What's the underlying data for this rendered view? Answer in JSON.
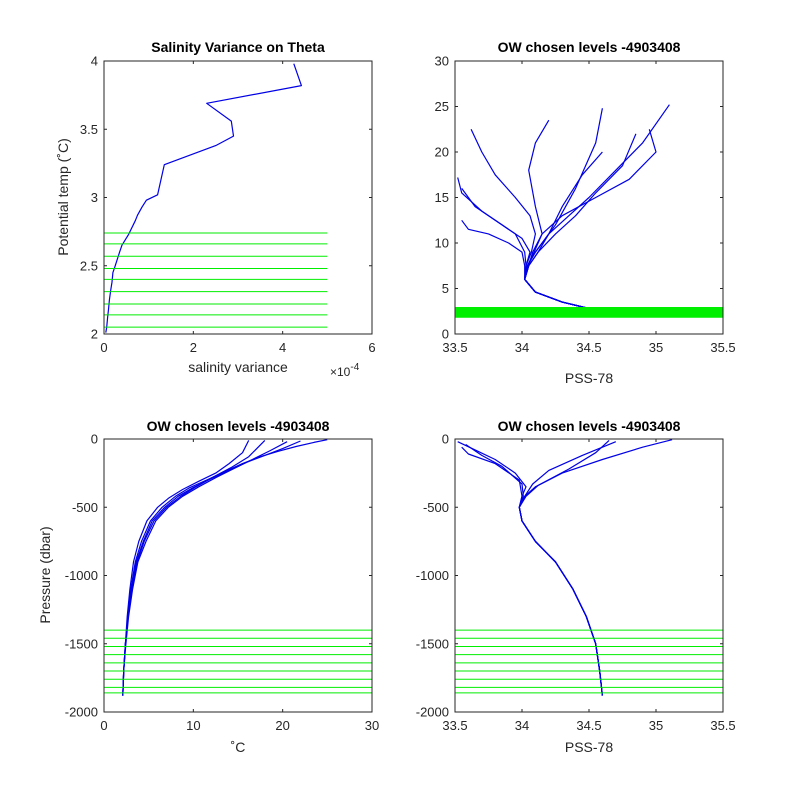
{
  "colors": {
    "profile": "#0000e6",
    "levels": "#00ee00",
    "axis": "#262626"
  },
  "chart_data": [
    {
      "id": "p1",
      "type": "line",
      "title": "Salinity Variance on Theta",
      "xlabel": "salinity variance",
      "ylabel": "Potential temp (˚C)",
      "x_exponent": "×10",
      "x_exponent_power": "-4",
      "xlim": [
        0,
        6
      ],
      "ylim": [
        2,
        4
      ],
      "y_reversed": false,
      "xticks": [
        0,
        2,
        4,
        6
      ],
      "xtick_labels": [
        "0",
        "2",
        "4",
        "6"
      ],
      "yticks": [
        2,
        2.5,
        3,
        3.5,
        4
      ],
      "ytick_labels": [
        "2",
        "2.5",
        "3",
        "3.5",
        "4"
      ],
      "series": [
        {
          "x": [
            4.25,
            4.42,
            2.3,
            2.85,
            2.9,
            2.5,
            1.35,
            1.2,
            0.95,
            0.85,
            0.75,
            0.7,
            0.55,
            0.4,
            0.35,
            0.3,
            0.25,
            0.2,
            0.18,
            0.15,
            0.12,
            0.1,
            0.08,
            0.06,
            0.04
          ],
          "y": [
            3.98,
            3.82,
            3.69,
            3.56,
            3.45,
            3.38,
            3.24,
            3.02,
            2.98,
            2.93,
            2.87,
            2.83,
            2.73,
            2.65,
            2.6,
            2.55,
            2.5,
            2.45,
            2.38,
            2.32,
            2.25,
            2.18,
            2.12,
            2.05,
            2.01
          ]
        }
      ],
      "hlevels": {
        "y": [
          2.74,
          2.66,
          2.57,
          2.48,
          2.4,
          2.31,
          2.22,
          2.14,
          2.05
        ],
        "x_from": 0,
        "x_to": 5
      }
    },
    {
      "id": "p2",
      "type": "line",
      "title": "OW chosen levels -4903408",
      "xlabel": "PSS-78",
      "ylabel": "",
      "xlim": [
        33.5,
        35.5
      ],
      "ylim": [
        0,
        30
      ],
      "y_reversed": false,
      "xticks": [
        33.5,
        34,
        34.5,
        35,
        35.5
      ],
      "xtick_labels": [
        "33.5",
        "34",
        "34.5",
        "35",
        "35.5"
      ],
      "yticks": [
        0,
        5,
        10,
        15,
        20,
        25,
        30
      ],
      "ytick_labels": [
        "0",
        "5",
        "10",
        "15",
        "20",
        "25",
        "30"
      ],
      "series": [
        {
          "x": [
            34.5,
            34.3,
            34.1,
            34.02,
            34.03,
            34.07,
            34.1,
            34.06,
            33.95,
            33.8,
            33.7,
            33.62
          ],
          "y": [
            2.8,
            3.5,
            4.6,
            6,
            7.5,
            9,
            11,
            13,
            15,
            17.5,
            20,
            22.5
          ]
        },
        {
          "x": [
            34.5,
            34.3,
            34.1,
            34.02,
            34.04,
            34.1,
            34.2,
            34.35,
            34.5,
            34.7,
            34.9,
            35.1
          ],
          "y": [
            2.8,
            3.5,
            4.6,
            6,
            7.5,
            9,
            11,
            13,
            15,
            18,
            21,
            25.2
          ]
        },
        {
          "x": [
            34.5,
            34.3,
            34.1,
            34.02,
            34.03,
            34.06,
            34.0,
            33.85,
            33.7,
            33.55,
            33.52
          ],
          "y": [
            2.8,
            3.5,
            4.6,
            6,
            7.5,
            9,
            10.5,
            12,
            13.5,
            15.5,
            17.2
          ]
        },
        {
          "x": [
            34.5,
            34.3,
            34.1,
            34.02,
            34.05,
            34.12,
            34.2,
            34.3,
            34.45,
            34.6
          ],
          "y": [
            2.8,
            3.5,
            4.6,
            6,
            7.5,
            9,
            11,
            14,
            17.5,
            20
          ]
        },
        {
          "x": [
            34.5,
            34.3,
            34.1,
            34.02,
            34.04,
            34.1,
            34.25,
            34.4,
            34.55,
            34.6
          ],
          "y": [
            2.8,
            3.5,
            4.6,
            6,
            7.5,
            9,
            12,
            16,
            21,
            24.8
          ]
        },
        {
          "x": [
            34.5,
            34.3,
            34.1,
            34.02,
            34.05,
            34.08,
            34.15,
            34.3,
            34.55,
            34.8,
            35.0,
            34.95
          ],
          "y": [
            2.8,
            3.5,
            4.6,
            6,
            7.5,
            9,
            11,
            13,
            15,
            17,
            20,
            22.5
          ]
        },
        {
          "x": [
            34.5,
            34.3,
            34.1,
            34.02,
            34.02,
            34.0,
            33.9,
            33.75,
            33.6,
            33.55
          ],
          "y": [
            2.8,
            3.5,
            4.6,
            6,
            7.5,
            9,
            10,
            11,
            11.5,
            12.5
          ]
        },
        {
          "x": [
            34.5,
            34.3,
            34.1,
            34.02,
            34.04,
            34.09,
            34.15,
            34.1,
            34.05,
            34.1,
            34.2
          ],
          "y": [
            2.8,
            3.5,
            4.6,
            6,
            7.5,
            9,
            11,
            14,
            18,
            21,
            23.5
          ]
        },
        {
          "x": [
            34.5,
            34.3,
            34.1,
            34.02,
            34.05,
            34.12,
            34.25,
            34.4,
            34.55,
            34.75,
            34.85
          ],
          "y": [
            2.8,
            3.5,
            4.6,
            6,
            7.5,
            9,
            11,
            13,
            15.5,
            18.5,
            22
          ]
        },
        {
          "x": [
            34.5,
            34.3,
            34.1,
            34.02,
            34.03,
            34.02,
            33.95,
            33.8,
            33.65,
            33.55
          ],
          "y": [
            2.8,
            3.5,
            4.6,
            6,
            7.5,
            9,
            11,
            12.5,
            14,
            16
          ]
        }
      ],
      "hlevels": {
        "y": [
          2.0,
          2.15,
          2.3,
          2.45,
          2.6,
          2.75
        ],
        "x_from": 33.5,
        "x_to": 35.5,
        "thick": true
      }
    },
    {
      "id": "p3",
      "type": "line",
      "title": "OW chosen levels -4903408",
      "xlabel": "˚C",
      "ylabel": "Pressure (dbar)",
      "xlim": [
        0,
        30
      ],
      "ylim": [
        -2000,
        0
      ],
      "y_reversed": false,
      "xticks": [
        0,
        10,
        20,
        30
      ],
      "xtick_labels": [
        "0",
        "10",
        "20",
        "30"
      ],
      "yticks": [
        -2000,
        -1500,
        -1000,
        -500,
        0
      ],
      "ytick_labels": [
        "-2000",
        "-1500",
        "-1000",
        "-500",
        "0"
      ],
      "series": [
        {
          "x": [
            2.1,
            2.2,
            2.4,
            2.7,
            3.0,
            3.5,
            4.2,
            5.2,
            6.5,
            8.0,
            9.5,
            11.5,
            13.5,
            15.5,
            17.5,
            19.5,
            21.5,
            23.5,
            25.0
          ],
          "y": [
            -1880,
            -1700,
            -1500,
            -1300,
            -1100,
            -900,
            -750,
            -600,
            -500,
            -420,
            -360,
            -300,
            -240,
            -180,
            -130,
            -90,
            -55,
            -25,
            -5
          ]
        },
        {
          "x": [
            2.1,
            2.2,
            2.4,
            2.7,
            3.1,
            3.7,
            4.5,
            5.6,
            7.0,
            8.6,
            10.3,
            12.2,
            14.2,
            16.2,
            18.0
          ],
          "y": [
            -1880,
            -1700,
            -1500,
            -1300,
            -1100,
            -900,
            -750,
            -600,
            -500,
            -420,
            -350,
            -280,
            -210,
            -130,
            -10
          ]
        },
        {
          "x": [
            2.1,
            2.2,
            2.4,
            2.6,
            2.9,
            3.3,
            3.9,
            4.8,
            6.0,
            7.3,
            8.8,
            10.6,
            12.5,
            14.0,
            15.5,
            16.2
          ],
          "y": [
            -1880,
            -1700,
            -1500,
            -1300,
            -1100,
            -900,
            -750,
            -600,
            -500,
            -430,
            -370,
            -310,
            -250,
            -180,
            -100,
            -10
          ]
        },
        {
          "x": [
            2.1,
            2.2,
            2.4,
            2.7,
            3.1,
            3.6,
            4.4,
            5.4,
            6.8,
            8.3,
            10.0,
            12.0,
            14.0,
            16.0,
            18.0,
            20.0,
            22.0
          ],
          "y": [
            -1880,
            -1700,
            -1500,
            -1300,
            -1100,
            -900,
            -750,
            -600,
            -500,
            -420,
            -355,
            -290,
            -230,
            -170,
            -120,
            -70,
            -15
          ]
        },
        {
          "x": [
            2.1,
            2.2,
            2.45,
            2.75,
            3.2,
            3.8,
            4.7,
            5.8,
            7.2,
            8.8,
            10.6,
            12.6,
            14.6,
            16.6,
            18.6,
            20.5
          ],
          "y": [
            -1880,
            -1700,
            -1500,
            -1300,
            -1100,
            -900,
            -750,
            -600,
            -500,
            -420,
            -350,
            -280,
            -215,
            -150,
            -85,
            -20
          ]
        }
      ],
      "hlevels": {
        "y": [
          -1400,
          -1460,
          -1520,
          -1580,
          -1640,
          -1700,
          -1760,
          -1820,
          -1860
        ],
        "x_from": 0,
        "x_to": 30
      }
    },
    {
      "id": "p4",
      "type": "line",
      "title": "OW chosen levels -4903408",
      "xlabel": "PSS-78",
      "ylabel": "",
      "xlim": [
        33.5,
        35.5
      ],
      "ylim": [
        -2000,
        0
      ],
      "y_reversed": false,
      "xticks": [
        33.5,
        34,
        34.5,
        35,
        35.5
      ],
      "xtick_labels": [
        "33.5",
        "34",
        "34.5",
        "35",
        "35.5"
      ],
      "yticks": [
        -2000,
        -1500,
        -1000,
        -500,
        0
      ],
      "ytick_labels": [
        "-2000",
        "-1500",
        "-1000",
        "-500",
        "0"
      ],
      "series": [
        {
          "x": [
            34.6,
            34.58,
            34.55,
            34.48,
            34.38,
            34.25,
            34.1,
            34.0,
            33.98,
            34.0,
            34.03,
            33.95,
            33.8,
            33.65,
            33.52
          ],
          "y": [
            -1880,
            -1700,
            -1500,
            -1300,
            -1100,
            -900,
            -750,
            -600,
            -500,
            -420,
            -350,
            -250,
            -150,
            -80,
            -20
          ]
        },
        {
          "x": [
            34.6,
            34.58,
            34.55,
            34.48,
            34.38,
            34.25,
            34.1,
            34.0,
            33.98,
            34.02,
            34.1,
            34.3,
            34.6,
            34.9,
            35.12
          ],
          "y": [
            -1880,
            -1700,
            -1500,
            -1300,
            -1100,
            -900,
            -750,
            -600,
            -500,
            -420,
            -350,
            -250,
            -150,
            -60,
            -5
          ]
        },
        {
          "x": [
            34.6,
            34.58,
            34.55,
            34.48,
            34.38,
            34.25,
            34.1,
            34.0,
            33.98,
            34.01,
            34.0,
            33.85,
            33.7,
            33.58
          ],
          "y": [
            -1880,
            -1700,
            -1500,
            -1300,
            -1100,
            -900,
            -750,
            -600,
            -500,
            -420,
            -330,
            -200,
            -120,
            -40
          ]
        },
        {
          "x": [
            34.6,
            34.58,
            34.55,
            34.48,
            34.38,
            34.25,
            34.1,
            34.0,
            33.98,
            34.02,
            34.08,
            34.2,
            34.45,
            34.7
          ],
          "y": [
            -1880,
            -1700,
            -1500,
            -1300,
            -1100,
            -900,
            -750,
            -600,
            -500,
            -420,
            -330,
            -230,
            -120,
            -20
          ]
        },
        {
          "x": [
            34.6,
            34.58,
            34.55,
            34.48,
            34.38,
            34.25,
            34.1,
            34.0,
            33.98,
            34.0,
            33.98,
            33.8,
            33.6,
            33.55
          ],
          "y": [
            -1880,
            -1700,
            -1500,
            -1300,
            -1100,
            -900,
            -750,
            -600,
            -500,
            -420,
            -300,
            -180,
            -110,
            -60
          ]
        },
        {
          "x": [
            34.6,
            34.58,
            34.55,
            34.48,
            34.38,
            34.25,
            34.1,
            34.0,
            33.98,
            34.03,
            34.12,
            34.35,
            34.55,
            34.65
          ],
          "y": [
            -1880,
            -1700,
            -1500,
            -1300,
            -1100,
            -900,
            -750,
            -600,
            -500,
            -420,
            -340,
            -220,
            -100,
            -10
          ]
        }
      ],
      "hlevels": {
        "y": [
          -1400,
          -1460,
          -1520,
          -1580,
          -1640,
          -1700,
          -1760,
          -1820,
          -1860
        ],
        "x_from": 33.5,
        "x_to": 35.5
      }
    }
  ]
}
